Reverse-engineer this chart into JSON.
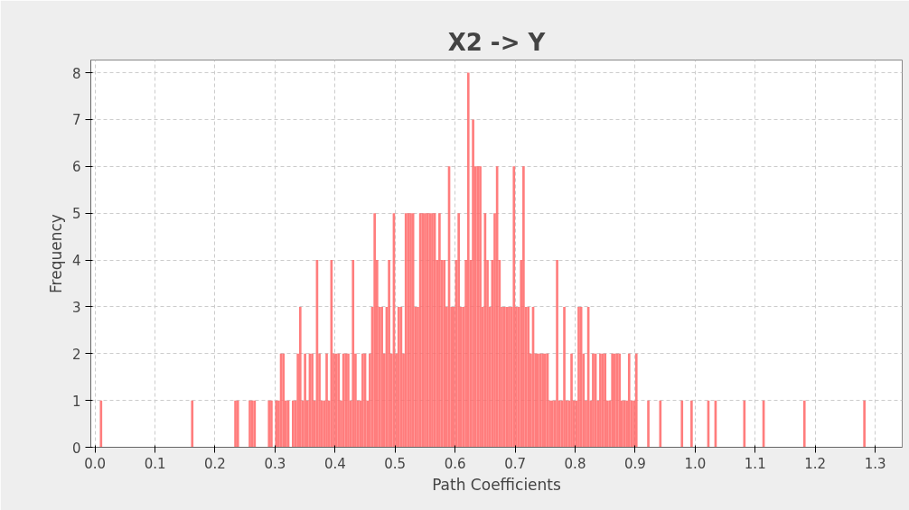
{
  "chart_data": {
    "type": "histogram",
    "title": "X2 -> Y",
    "xlabel": "Path Coefficients",
    "ylabel": "Frequency",
    "color": "#ff6666",
    "grid": true,
    "xlim": [
      -0.007,
      1.345
    ],
    "ylim": [
      0,
      8.27
    ],
    "xticks": [
      {
        "value": 0,
        "label": "0.0"
      },
      0.1,
      0.2,
      0.3,
      0.4,
      0.5,
      0.6,
      0.7,
      0.8,
      0.9,
      {
        "value": 1,
        "label": "1.0"
      },
      1.1,
      1.2,
      1.3
    ],
    "yticks": [
      0,
      1,
      2,
      3,
      4,
      5,
      6,
      7,
      8
    ],
    "bins": [
      0,
      0.004,
      0.008,
      0.012,
      0.016,
      0.02,
      0.024,
      0.028,
      0.032,
      0.036,
      0.04,
      0.044,
      0.048,
      0.052,
      0.056,
      0.06,
      0.064,
      0.068,
      0.072,
      0.076,
      0.08,
      0.084,
      0.088,
      0.092,
      0.096,
      0.1,
      0.104,
      0.108,
      0.112,
      0.116,
      0.12,
      0.124,
      0.128,
      0.132,
      0.136,
      0.14,
      0.144,
      0.148,
      0.152,
      0.156,
      0.16,
      0.164,
      0.168,
      0.172,
      0.176,
      0.18,
      0.184,
      0.188,
      0.192,
      0.196,
      0.2,
      0.204,
      0.208,
      0.212,
      0.216,
      0.22,
      0.224,
      0.228,
      0.232,
      0.236,
      0.24,
      0.244,
      0.248,
      0.252,
      0.256,
      0.26,
      0.264,
      0.268,
      0.272,
      0.276,
      0.28,
      0.284,
      0.288,
      0.292,
      0.296,
      0.3,
      0.304,
      0.308,
      0.312,
      0.316,
      0.32,
      0.324,
      0.328,
      0.332,
      0.336,
      0.34,
      0.344,
      0.348,
      0.352,
      0.356,
      0.36,
      0.364,
      0.368,
      0.372,
      0.376,
      0.38,
      0.384,
      0.388,
      0.392,
      0.396,
      0.4,
      0.404,
      0.408,
      0.412,
      0.416,
      0.42,
      0.424,
      0.428,
      0.432,
      0.436,
      0.44,
      0.444,
      0.448,
      0.452,
      0.456,
      0.46,
      0.464,
      0.468,
      0.472,
      0.476,
      0.48,
      0.484,
      0.488,
      0.492,
      0.496,
      0.5,
      0.504,
      0.508,
      0.512,
      0.516,
      0.52,
      0.524,
      0.528,
      0.532,
      0.536,
      0.54,
      0.544,
      0.548,
      0.552,
      0.556,
      0.56,
      0.564,
      0.568,
      0.572,
      0.576,
      0.58,
      0.584,
      0.588,
      0.592,
      0.596,
      0.6,
      0.604,
      0.608,
      0.612,
      0.616,
      0.62,
      0.624,
      0.628,
      0.632,
      0.636,
      0.64,
      0.644,
      0.648,
      0.652,
      0.656,
      0.66,
      0.664,
      0.668,
      0.672,
      0.676,
      0.68,
      0.684,
      0.688,
      0.692,
      0.696,
      0.7,
      0.704,
      0.708,
      0.712,
      0.716,
      0.72,
      0.724,
      0.728,
      0.732,
      0.736,
      0.74,
      0.744,
      0.748,
      0.752,
      0.756,
      0.76,
      0.764,
      0.768,
      0.772,
      0.776,
      0.78,
      0.784,
      0.788,
      0.792,
      0.796,
      0.8,
      0.804,
      0.808,
      0.812,
      0.816,
      0.82,
      0.824,
      0.828,
      0.832,
      0.836,
      0.84,
      0.844,
      0.848,
      0.852,
      0.856,
      0.86,
      0.864,
      0.868,
      0.872,
      0.876,
      0.88,
      0.884,
      0.888,
      0.892,
      0.896,
      0.9,
      0.904,
      0.908,
      0.912,
      0.916,
      0.92,
      0.924,
      0.928,
      0.932,
      0.936,
      0.94,
      0.944,
      0.948,
      0.952,
      0.956,
      0.96,
      0.964,
      0.968,
      0.972,
      0.976,
      0.98,
      0.984,
      0.988,
      0.992,
      0.996,
      1.0,
      1.004,
      1.008,
      1.012,
      1.016,
      1.02,
      1.024,
      1.028,
      1.032,
      1.036,
      1.04,
      1.044,
      1.048,
      1.052,
      1.056,
      1.06,
      1.064,
      1.068,
      1.072,
      1.076,
      1.08,
      1.084,
      1.088,
      1.092,
      1.096,
      1.1,
      1.104,
      1.108,
      1.112,
      1.116,
      1.12,
      1.124,
      1.128,
      1.132,
      1.136,
      1.14,
      1.144,
      1.148,
      1.152,
      1.156,
      1.16,
      1.164,
      1.168,
      1.172,
      1.176,
      1.18,
      1.184,
      1.188,
      1.192,
      1.196,
      1.2,
      1.204,
      1.208,
      1.212,
      1.216,
      1.22,
      1.224,
      1.228,
      1.232,
      1.236,
      1.24,
      1.244,
      1.248,
      1.252,
      1.256,
      1.26,
      1.264,
      1.268,
      1.272,
      1.276,
      1.28,
      1.284,
      1.288
    ],
    "values": [
      0,
      0,
      1,
      0,
      0,
      0,
      0,
      0,
      0,
      0,
      0,
      0,
      0,
      0,
      0,
      0,
      0,
      0,
      0,
      0,
      0,
      0,
      0,
      0,
      0,
      0,
      0,
      0,
      0,
      0,
      0,
      0,
      0,
      0,
      0,
      0,
      0,
      0,
      0,
      0,
      1,
      0,
      0,
      0,
      0,
      0,
      0,
      0,
      0,
      0,
      0,
      0,
      0,
      0,
      0,
      0,
      0,
      0,
      1,
      1,
      0,
      0,
      0,
      0,
      1,
      1,
      1,
      0,
      0,
      0,
      0,
      0,
      1,
      1,
      0,
      1,
      1,
      2,
      2,
      1,
      1,
      0,
      1,
      1,
      2,
      3,
      1,
      2,
      1,
      2,
      2,
      1,
      4,
      2,
      1,
      1,
      2,
      1,
      4,
      2,
      2,
      2,
      1,
      2,
      2,
      2,
      1,
      4,
      2,
      1,
      1,
      2,
      2,
      1,
      2,
      3,
      5,
      4,
      3,
      3,
      2,
      3,
      4,
      2,
      5,
      2,
      3,
      3,
      2,
      5,
      5,
      5,
      5,
      3,
      3,
      5,
      5,
      5,
      5,
      5,
      5,
      5,
      4,
      5,
      4,
      4,
      3,
      6,
      3,
      3,
      4,
      5,
      3,
      3,
      4,
      8,
      4,
      7,
      6,
      6,
      6,
      3,
      5,
      4,
      3,
      4,
      5,
      6,
      4,
      3,
      3,
      3,
      3,
      3,
      6,
      3,
      3,
      4,
      6,
      3,
      3,
      2,
      3,
      2,
      2,
      2,
      2,
      2,
      2,
      1,
      1,
      1,
      4,
      1,
      1,
      3,
      1,
      1,
      2,
      1,
      1,
      3,
      3,
      2,
      1,
      3,
      1,
      2,
      2,
      1,
      2,
      2,
      2,
      1,
      1,
      2,
      2,
      2,
      2,
      1,
      1,
      1,
      2,
      1,
      1,
      2,
      0,
      0,
      0,
      0,
      1,
      0,
      0,
      0,
      0,
      1,
      0,
      0,
      0,
      0,
      0,
      0,
      0,
      0,
      1,
      0,
      0,
      0,
      1,
      0,
      0,
      0,
      0,
      0,
      0,
      1,
      0,
      0,
      1,
      0,
      0,
      0,
      0,
      0,
      0,
      0,
      0,
      0,
      0,
      0,
      1,
      0,
      0,
      0,
      0,
      0,
      0,
      0,
      1,
      0,
      0,
      0,
      0,
      0,
      0,
      0,
      0,
      0,
      0,
      0,
      0,
      0,
      0,
      0,
      0,
      1,
      0,
      0,
      0,
      0,
      0,
      0,
      0,
      0,
      0,
      0,
      0,
      0,
      0,
      0,
      0,
      0,
      0,
      0,
      0,
      0,
      0,
      0,
      0,
      0,
      1,
      0
    ]
  }
}
